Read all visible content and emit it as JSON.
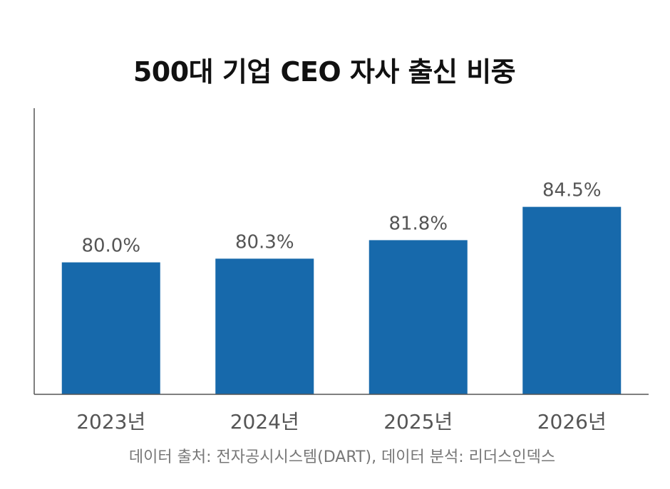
{
  "chart_data": {
    "type": "bar",
    "title": "500대 기업 CEO 자사 출신 비중",
    "categories": [
      "2023년",
      "2024년",
      "2025년",
      "2026년"
    ],
    "values": [
      80.0,
      80.3,
      81.8,
      84.5
    ],
    "value_labels": [
      "80.0%",
      "80.3%",
      "81.8%",
      "84.5%"
    ],
    "ylim": [
      69.3,
      92.5
    ],
    "grid": false,
    "legend": "none",
    "bar_color": "#1769ab"
  },
  "source": "데이터 출처: 전자공시시스템(DART), 데이터 분석: 리더스인덱스"
}
